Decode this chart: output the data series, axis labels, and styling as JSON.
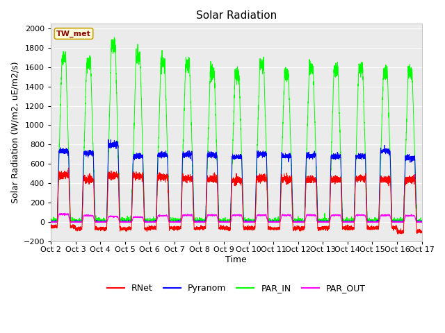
{
  "title": "Solar Radiation",
  "ylabel": "Solar Radiation (W/m2, uE/m2/s)",
  "xlabel": "Time",
  "station_label": "TW_met",
  "ylim": [
    -200,
    2050
  ],
  "yticks": [
    -200,
    0,
    200,
    400,
    600,
    800,
    1000,
    1200,
    1400,
    1600,
    1800,
    2000
  ],
  "num_days": 15,
  "fig_bg_color": "#ffffff",
  "plot_bg_color": "#ebebeb",
  "grid_color": "#ffffff",
  "title_fontsize": 11,
  "label_fontsize": 9,
  "tick_fontsize": 8,
  "peaks_rnet": [
    490,
    440,
    470,
    470,
    460,
    450,
    440,
    430,
    450,
    440,
    440,
    440,
    450,
    440,
    440
  ],
  "peaks_pyranom": [
    730,
    710,
    800,
    680,
    690,
    695,
    690,
    670,
    700,
    680,
    685,
    680,
    680,
    735,
    660
  ],
  "peaks_par_in": [
    1680,
    1630,
    1820,
    1710,
    1640,
    1630,
    1560,
    1510,
    1620,
    1530,
    1580,
    1580,
    1590,
    1540,
    1540
  ],
  "peaks_par_out": [
    80,
    65,
    55,
    50,
    65,
    70,
    70,
    70,
    70,
    70,
    70,
    70,
    70,
    70,
    65
  ],
  "night_rnet": [
    -50,
    -70,
    -70,
    -70,
    -60,
    -65,
    -60,
    -65,
    -65,
    -65,
    -65,
    -60,
    -65,
    -60,
    -100
  ]
}
